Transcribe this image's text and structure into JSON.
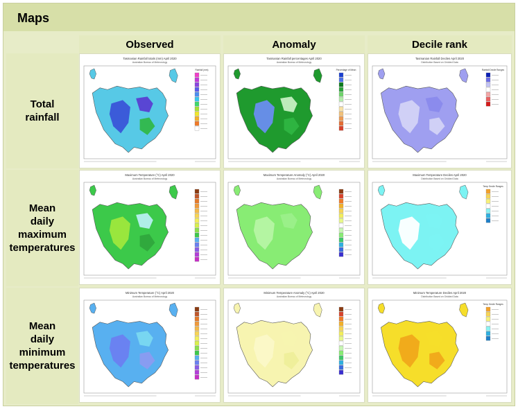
{
  "page": {
    "title": "Maps"
  },
  "columns": [
    "Observed",
    "Anomaly",
    "Decile rank"
  ],
  "rows": [
    {
      "label_lines": [
        "Total",
        "rainfall"
      ]
    },
    {
      "label_lines": [
        "Mean",
        "daily",
        "maximum",
        "temperatures"
      ]
    },
    {
      "label_lines": [
        "Mean",
        "daily",
        "minimum",
        "temperatures"
      ]
    }
  ],
  "maps": [
    [
      {
        "name": "rainfall-observed-map",
        "caption": "Tasmanian Rainfall totals (mm)   April 2020",
        "subcaption": "Australian Bureau of Meteorology",
        "legend_title": "Rainfall (mm)",
        "main": "#57c9e6",
        "patches": [
          "#3a55d8",
          "#5a3fd2",
          "#31b84a"
        ],
        "legend": [
          "#f03fc8",
          "#c23ad9",
          "#8a45e0",
          "#5b5bea",
          "#4b8df0",
          "#38c6ee",
          "#3ed86a",
          "#a6e234",
          "#f0e72a",
          "#f3b12a",
          "#f07a27",
          "#ffffff"
        ]
      },
      {
        "name": "rainfall-anomaly-map",
        "caption": "Tasmanian Rainfall percentages   April 2020",
        "subcaption": "Australian Bureau of Meteorology",
        "legend_title": "Percentage of Mean",
        "main": "#1f9a2e",
        "patches": [
          "#6a8df0",
          "#c6efc2",
          "#2fb542"
        ],
        "legend": [
          "#1a3fd0",
          "#4a6fe8",
          "#0b7a1d",
          "#2aa43a",
          "#6ed46a",
          "#b5ecac",
          "#ffffff",
          "#f7e1a6",
          "#f1c17a",
          "#ec9a52",
          "#e46d33",
          "#d8422a"
        ]
      },
      {
        "name": "rainfall-decile-map",
        "caption": "Tasmanian Rainfall Deciles   April 2020",
        "subcaption": "Distribution Based on Gridded Data",
        "legend_title": "Rainfall Decile Ranges",
        "main": "#9f9ff0",
        "patches": [
          "#d3d3f6",
          "#8a8aec",
          "#d3d3f6"
        ],
        "legend": [
          "#0b1fb5",
          "#6b6be6",
          "#c3c3f4",
          "#ffffff",
          "#f3a6a6",
          "#ea5f5f",
          "#d41a1a"
        ]
      }
    ],
    [
      {
        "name": "tmax-observed-map",
        "caption": "Maximum Temperature (°C)   April 2020",
        "subcaption": "Australian Bureau of Meteorology",
        "legend_title": "",
        "main": "#3cc94a",
        "patches": [
          "#9ee83c",
          "#b6f0f0",
          "#2fa83c"
        ],
        "legend": [
          "#8b3b12",
          "#c0562a",
          "#e47a2a",
          "#f09a3a",
          "#f4b94a",
          "#f7d455",
          "#f3ee5c",
          "#d8ef4c",
          "#8be04c",
          "#3cc94a",
          "#58b0f0",
          "#6b80f0",
          "#8b5be6",
          "#b33fd8",
          "#c72fc7"
        ]
      },
      {
        "name": "tmax-anomaly-map",
        "caption": "Maximum Temperature Anomaly (°C)   April 2020",
        "subcaption": "Australian Bureau of Meteorology",
        "legend_title": "",
        "main": "#88ec74",
        "patches": [
          "#b6f5a4",
          "#9bf08a",
          "#88ec74"
        ],
        "legend": [
          "#8b3b12",
          "#d8422a",
          "#f07a27",
          "#f3b12a",
          "#f7d455",
          "#f3ee5c",
          "#e8f88a",
          "#ffffff",
          "#c8f6b4",
          "#88ec74",
          "#3fc86a",
          "#2fb0e0",
          "#3a6be0",
          "#3a2fd0"
        ]
      },
      {
        "name": "tmax-decile-map",
        "caption": "Maximum Temperature Deciles   April 2020",
        "subcaption": "Distribution Based on Gridded Data",
        "legend_title": "Temp Decile Ranges",
        "main": "#7cf3f3",
        "patches": [
          "#ffffff",
          "#7cf3f3",
          "#7cf3f3"
        ],
        "legend": [
          "#f3a12a",
          "#f7d455",
          "#f7f07a",
          "#ffffff",
          "#8cf3f3",
          "#2fb0e0",
          "#1f7fc8"
        ]
      }
    ],
    [
      {
        "name": "tmin-observed-map",
        "caption": "Minimum Temperature (°C)   April 2020",
        "subcaption": "Australian Bureau of Meteorology",
        "legend_title": "",
        "main": "#58b0f0",
        "patches": [
          "#6b80f0",
          "#7ad8f0",
          "#8b9bf0"
        ],
        "legend": [
          "#8b3b12",
          "#c0562a",
          "#e47a2a",
          "#f09a3a",
          "#f4b94a",
          "#f7d455",
          "#f3ee5c",
          "#d8ef4c",
          "#8be04c",
          "#3cc94a",
          "#58b0f0",
          "#6b80f0",
          "#8b5be6",
          "#b33fd8",
          "#c72fc7"
        ]
      },
      {
        "name": "tmin-anomaly-map",
        "caption": "Minimum Temperature Anomaly (°C)   April 2020",
        "subcaption": "Australian Bureau of Meteorology",
        "legend_title": "",
        "main": "#f7f4b0",
        "patches": [
          "#fbf8c8",
          "#f7f4b0",
          "#eeee9a"
        ],
        "legend": [
          "#8b3b12",
          "#d8422a",
          "#f07a27",
          "#f3b12a",
          "#f7d455",
          "#f3ee5c",
          "#e8f88a",
          "#ffffff",
          "#c8f6b4",
          "#88ec74",
          "#3fc86a",
          "#2fb0e0",
          "#3a6be0",
          "#3a2fd0"
        ]
      },
      {
        "name": "tmin-decile-map",
        "caption": "Minimum Temperature Deciles   April 2020",
        "subcaption": "Distribution Based on Gridded Data",
        "legend_title": "Temp Decile Ranges",
        "main": "#f6de2a",
        "patches": [
          "#f0a81a",
          "#f6de2a",
          "#f0a81a"
        ],
        "legend": [
          "#f3a12a",
          "#f7d455",
          "#f7f07a",
          "#ffffff",
          "#8cf3f3",
          "#2fb0e0",
          "#1f7fc8"
        ]
      }
    ]
  ]
}
